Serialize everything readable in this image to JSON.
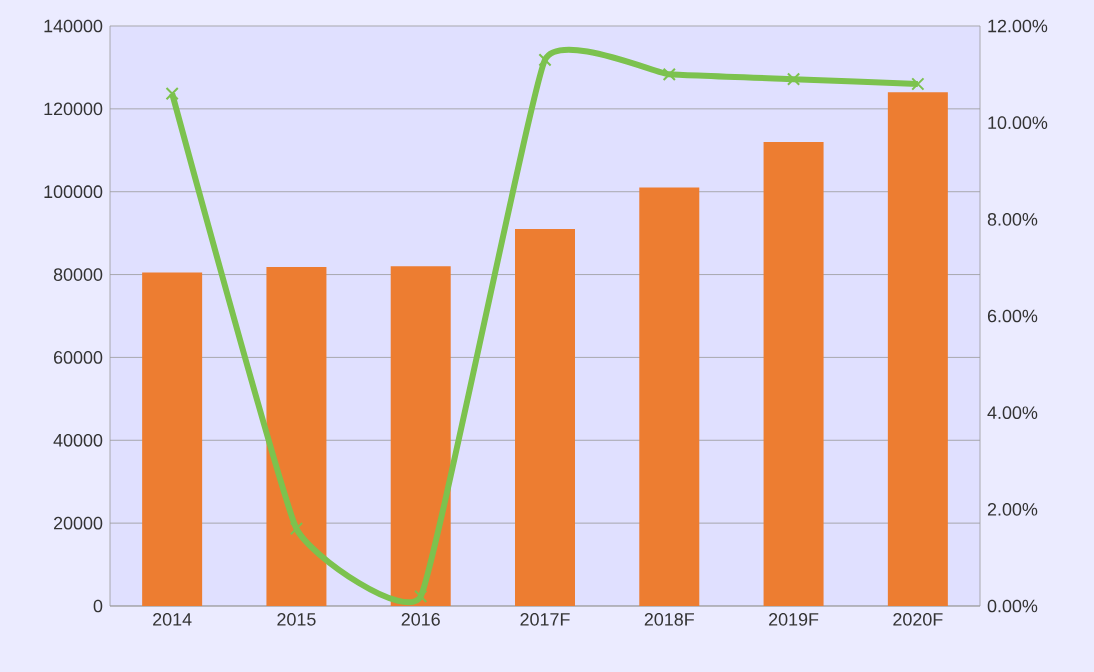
{
  "chart_data": {
    "type": "bar",
    "categories": [
      "2014",
      "2015",
      "2016",
      "2017F",
      "2018F",
      "2019F",
      "2020F"
    ],
    "series": [
      {
        "color": "#ed7d31",
        "values": [
          80500,
          81800,
          82000,
          91000,
          101000,
          112000,
          124000
        ]
      },
      {
        "type": "line",
        "axis": "y2",
        "color": "#7cc24e",
        "values": [
          10.6,
          1.6,
          0.2,
          11.3,
          11.0,
          10.9,
          10.8
        ]
      }
    ],
    "ylim": [
      0,
      140000
    ],
    "yticks": [
      0,
      20000,
      40000,
      60000,
      80000,
      100000,
      120000,
      140000
    ],
    "y2lim": [
      0,
      12
    ],
    "y2ticks": [
      {
        "value": 0,
        "label": "0.00%"
      },
      {
        "value": 2,
        "label": "2.00%"
      },
      {
        "value": 4,
        "label": "4.00%"
      },
      {
        "value": 6,
        "label": "6.00%"
      },
      {
        "value": 8,
        "label": "8.00%"
      },
      {
        "value": 10,
        "label": "10.00%"
      },
      {
        "value": 12,
        "label": "12.00%"
      }
    ],
    "grid": "y",
    "marker": "cross"
  }
}
